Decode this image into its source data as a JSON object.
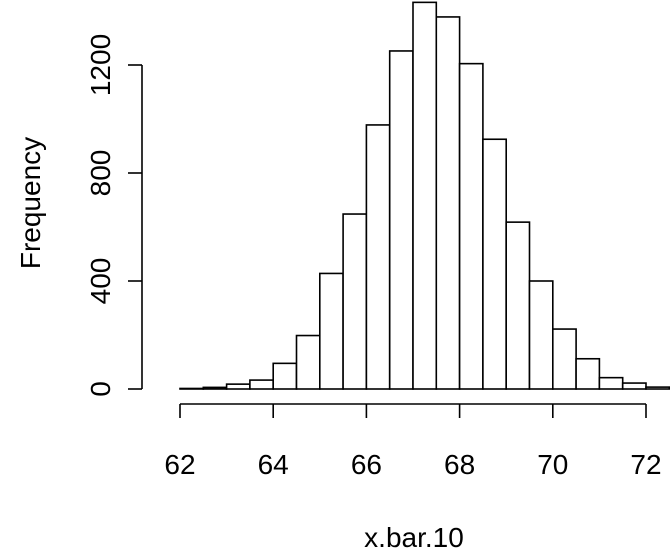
{
  "chart_data": {
    "type": "bar",
    "title": "",
    "xlabel": "x.bar.10",
    "ylabel": "Frequency",
    "bin_width": 0.5,
    "bins": [
      {
        "x0": 62.0,
        "x1": 62.5,
        "count": 2
      },
      {
        "x0": 62.5,
        "x1": 63.0,
        "count": 6
      },
      {
        "x0": 63.0,
        "x1": 63.5,
        "count": 18
      },
      {
        "x0": 63.5,
        "x1": 64.0,
        "count": 33
      },
      {
        "x0": 64.0,
        "x1": 64.5,
        "count": 95
      },
      {
        "x0": 64.5,
        "x1": 65.0,
        "count": 198
      },
      {
        "x0": 65.0,
        "x1": 65.5,
        "count": 428
      },
      {
        "x0": 65.5,
        "x1": 66.0,
        "count": 648
      },
      {
        "x0": 66.0,
        "x1": 66.5,
        "count": 978
      },
      {
        "x0": 66.5,
        "x1": 67.0,
        "count": 1252
      },
      {
        "x0": 67.0,
        "x1": 67.5,
        "count": 1432
      },
      {
        "x0": 67.5,
        "x1": 68.0,
        "count": 1378
      },
      {
        "x0": 68.0,
        "x1": 68.5,
        "count": 1205
      },
      {
        "x0": 68.5,
        "x1": 69.0,
        "count": 925
      },
      {
        "x0": 69.0,
        "x1": 69.5,
        "count": 618
      },
      {
        "x0": 69.5,
        "x1": 70.0,
        "count": 400
      },
      {
        "x0": 70.0,
        "x1": 70.5,
        "count": 222
      },
      {
        "x0": 70.5,
        "x1": 71.0,
        "count": 112
      },
      {
        "x0": 71.0,
        "x1": 71.5,
        "count": 42
      },
      {
        "x0": 71.5,
        "x1": 72.0,
        "count": 22
      },
      {
        "x0": 72.0,
        "x1": 72.5,
        "count": 7
      }
    ],
    "x_ticks": [
      "62",
      "64",
      "66",
      "68",
      "70",
      "72"
    ],
    "y_ticks": [
      "0",
      "400",
      "800",
      "1200"
    ],
    "xlim": [
      62,
      72
    ],
    "ylim": [
      0,
      1400
    ],
    "grid": false,
    "legend": "none"
  }
}
